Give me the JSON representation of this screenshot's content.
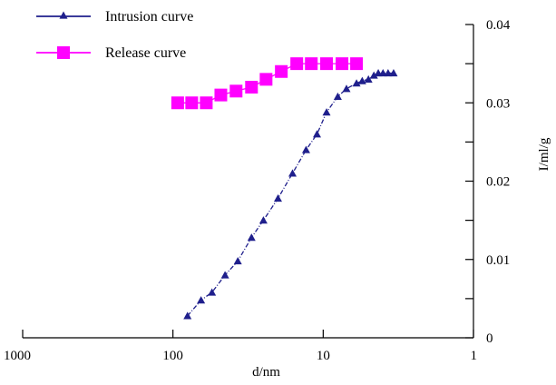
{
  "chart_data": {
    "type": "scatter",
    "title": "",
    "xlabel": "d/nm",
    "ylabel": "I/ml/g",
    "xscale": "log",
    "x_reversed": true,
    "xlim": [
      1000,
      1
    ],
    "ylim": [
      0,
      0.04
    ],
    "x_ticks": [
      1000,
      100,
      10,
      1
    ],
    "x_tick_labels": [
      "1000",
      "100",
      "10",
      "1"
    ],
    "y_ticks": [
      0,
      0.01,
      0.02,
      0.03,
      0.04
    ],
    "y_tick_labels": [
      "0",
      "0.01",
      "0.02",
      "0.03",
      "0.04"
    ],
    "y_axis_side": "right",
    "grid": false,
    "legend_position": "top-left",
    "series": [
      {
        "name": "Intrusion curve",
        "color": "#1f1f8c",
        "marker": "triangle",
        "line": "dashdot",
        "x": [
          80,
          65,
          55,
          45,
          37,
          30,
          25,
          20,
          16,
          13,
          11,
          9.5,
          8,
          7,
          6,
          5.5,
          5,
          4.6,
          4.3,
          4,
          3.7,
          3.4
        ],
        "y": [
          0.0028,
          0.0048,
          0.0058,
          0.008,
          0.0098,
          0.0128,
          0.015,
          0.0178,
          0.021,
          0.024,
          0.026,
          0.0288,
          0.0308,
          0.0318,
          0.0325,
          0.0328,
          0.033,
          0.0335,
          0.0338,
          0.0338,
          0.0338,
          0.0338
        ]
      },
      {
        "name": "Release curve",
        "color": "#ff00ff",
        "marker": "square",
        "line": "solid",
        "x": [
          93,
          75,
          60,
          48,
          38,
          30,
          24,
          19,
          15,
          12,
          9.5,
          7.5,
          6
        ],
        "y": [
          0.03,
          0.03,
          0.03,
          0.031,
          0.0315,
          0.032,
          0.033,
          0.034,
          0.035,
          0.035,
          0.035,
          0.035,
          0.035
        ]
      }
    ]
  }
}
